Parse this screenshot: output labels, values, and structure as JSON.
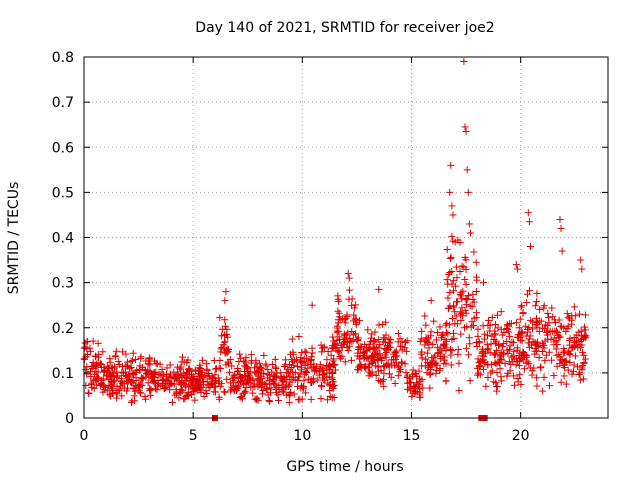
{
  "chart_data": {
    "type": "scatter",
    "title": "Day 140 of 2021, SRMTID for receiver joe2",
    "xlabel": "GPS time / hours",
    "ylabel": "SRMTID / TECUs",
    "xlim": [
      0,
      24
    ],
    "ylim": [
      0,
      0.8
    ],
    "x_ticks": [
      0,
      5,
      10,
      15,
      20
    ],
    "y_ticks": [
      0,
      0.1,
      0.2,
      0.3,
      0.4,
      0.5,
      0.6,
      0.7,
      0.8
    ],
    "x_tick_labels": [
      "0",
      "5",
      "10",
      "15",
      "20"
    ],
    "y_tick_labels": [
      "0",
      "0.1",
      "0.2",
      "0.3",
      "0.4",
      "0.5",
      "0.6",
      "0.7",
      "0.8"
    ],
    "grid": true,
    "marker": "plus",
    "color": "#e00000",
    "zero_squares_x": [
      6.0,
      18.2,
      18.35
    ],
    "series": [
      {
        "name": "SRMTID",
        "envelope": [
          {
            "t0": 0.0,
            "t1": 0.8,
            "base": 0.11,
            "spread": 0.09
          },
          {
            "t0": 0.8,
            "t1": 3.0,
            "base": 0.09,
            "spread": 0.07
          },
          {
            "t0": 3.0,
            "t1": 6.2,
            "base": 0.085,
            "spread": 0.06
          },
          {
            "t0": 6.2,
            "t1": 6.7,
            "base": 0.15,
            "spread": 0.12
          },
          {
            "t0": 6.7,
            "t1": 9.5,
            "base": 0.085,
            "spread": 0.07
          },
          {
            "t0": 9.5,
            "t1": 11.5,
            "base": 0.11,
            "spread": 0.09
          },
          {
            "t0": 11.5,
            "t1": 12.5,
            "base": 0.2,
            "spread": 0.11
          },
          {
            "t0": 12.5,
            "t1": 14.8,
            "base": 0.14,
            "spread": 0.09
          },
          {
            "t0": 14.8,
            "t1": 15.4,
            "base": 0.07,
            "spread": 0.05
          },
          {
            "t0": 15.4,
            "t1": 16.6,
            "base": 0.14,
            "spread": 0.1
          },
          {
            "t0": 16.6,
            "t1": 18.0,
            "base": 0.24,
            "spread": 0.2
          },
          {
            "t0": 18.0,
            "t1": 20.0,
            "base": 0.15,
            "spread": 0.12
          },
          {
            "t0": 20.0,
            "t1": 21.5,
            "base": 0.17,
            "spread": 0.14
          },
          {
            "t0": 21.5,
            "t1": 23.0,
            "base": 0.16,
            "spread": 0.12
          }
        ],
        "peaks": [
          {
            "x": 6.5,
            "y": 0.28
          },
          {
            "x": 6.45,
            "y": 0.26
          },
          {
            "x": 10.45,
            "y": 0.25
          },
          {
            "x": 12.1,
            "y": 0.32
          },
          {
            "x": 12.15,
            "y": 0.31
          },
          {
            "x": 13.5,
            "y": 0.285
          },
          {
            "x": 16.8,
            "y": 0.56
          },
          {
            "x": 16.75,
            "y": 0.5
          },
          {
            "x": 16.85,
            "y": 0.47
          },
          {
            "x": 16.9,
            "y": 0.45
          },
          {
            "x": 17.0,
            "y": 0.39
          },
          {
            "x": 17.4,
            "y": 0.79
          },
          {
            "x": 17.45,
            "y": 0.645
          },
          {
            "x": 17.5,
            "y": 0.635
          },
          {
            "x": 17.55,
            "y": 0.55
          },
          {
            "x": 17.6,
            "y": 0.5
          },
          {
            "x": 17.65,
            "y": 0.43
          },
          {
            "x": 17.7,
            "y": 0.41
          },
          {
            "x": 19.8,
            "y": 0.34
          },
          {
            "x": 19.85,
            "y": 0.33
          },
          {
            "x": 20.35,
            "y": 0.455
          },
          {
            "x": 20.4,
            "y": 0.435
          },
          {
            "x": 20.45,
            "y": 0.38
          },
          {
            "x": 21.8,
            "y": 0.44
          },
          {
            "x": 21.85,
            "y": 0.42
          },
          {
            "x": 21.9,
            "y": 0.37
          },
          {
            "x": 22.75,
            "y": 0.35
          },
          {
            "x": 22.8,
            "y": 0.33
          },
          {
            "x": 18.3,
            "y": 0.3
          },
          {
            "x": 15.9,
            "y": 0.26
          }
        ]
      }
    ]
  }
}
